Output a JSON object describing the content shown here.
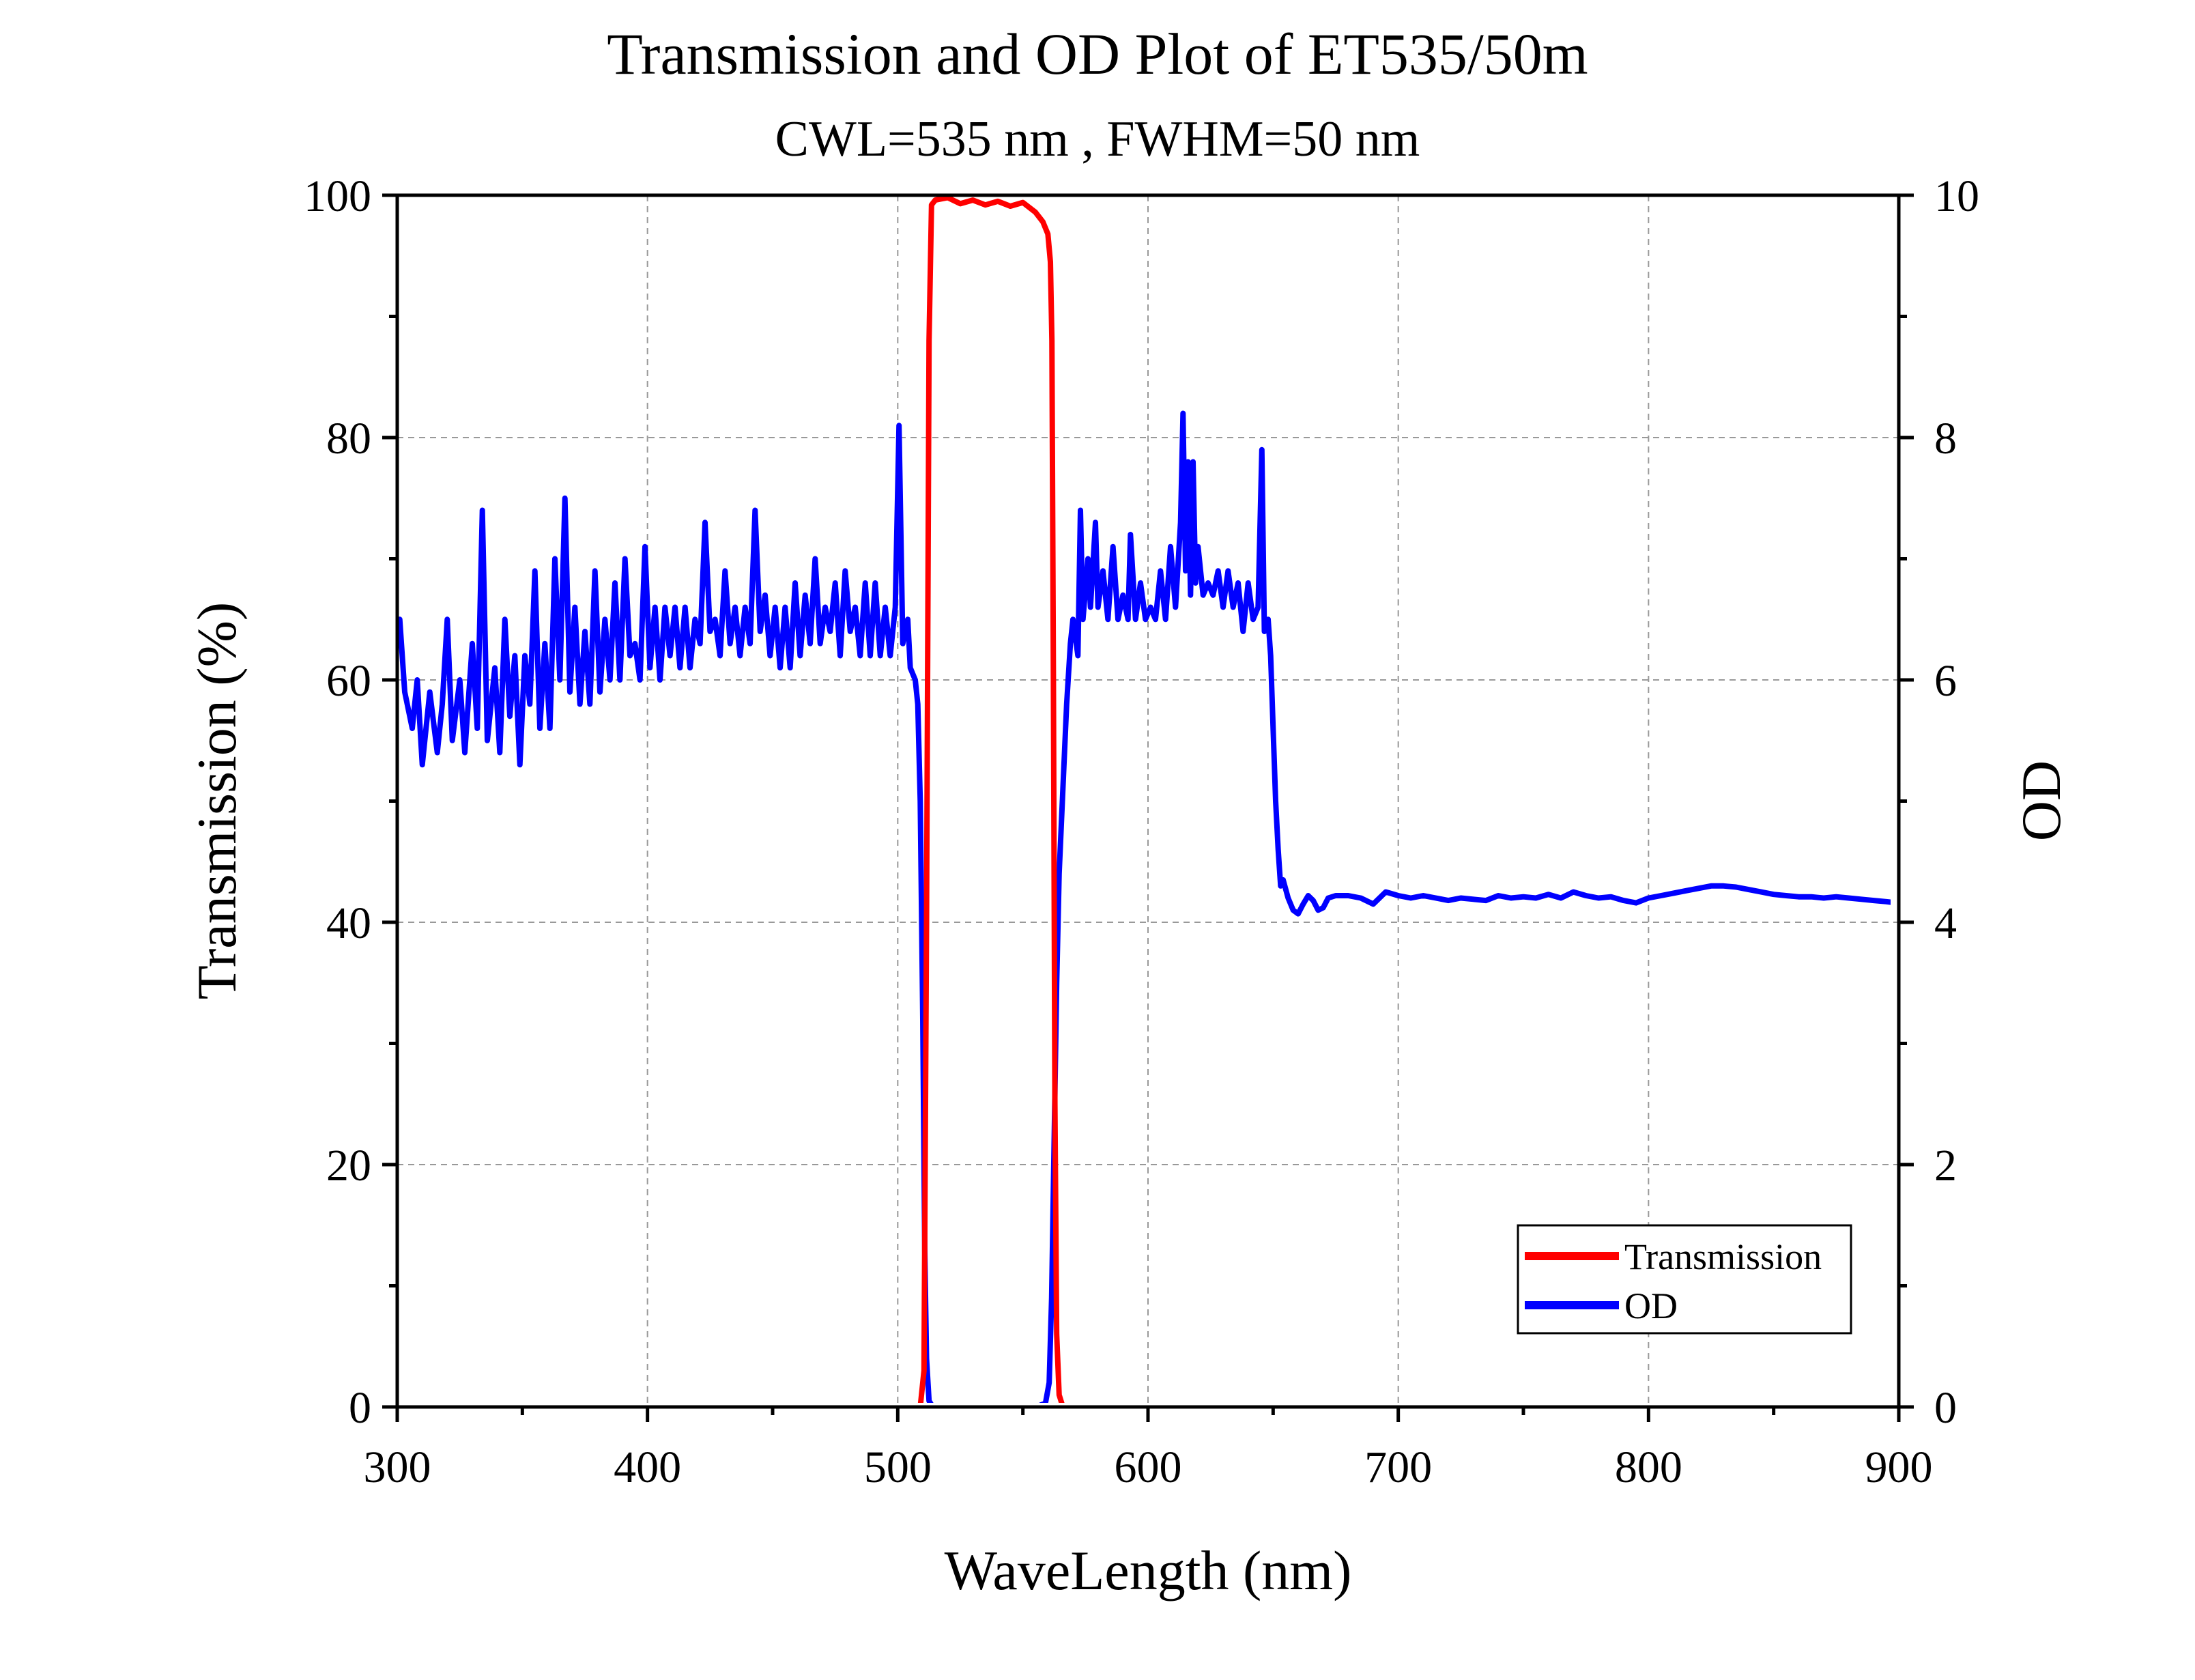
{
  "chart_data": {
    "type": "line",
    "title": "Transmission and OD Plot of ET535/50m",
    "subtitle": "CWL=535 nm , FWHM=50 nm",
    "xlabel": "WaveLength (nm)",
    "ylabel_left": "Transmission (%)",
    "ylabel_right": "OD",
    "xlim": [
      300,
      900
    ],
    "ylim_left": [
      0,
      100
    ],
    "ylim_right": [
      0,
      10
    ],
    "x_ticks": [
      "300",
      "400",
      "500",
      "600",
      "700",
      "800",
      "900"
    ],
    "y_left_ticks": [
      "0",
      "20",
      "40",
      "60",
      "80",
      "100"
    ],
    "y_right_ticks": [
      "0",
      "2",
      "4",
      "6",
      "8",
      "10"
    ],
    "grid": true,
    "legend_position": "bottom-right",
    "series": [
      {
        "name": "Transmission",
        "axis": "left",
        "color": "#ff0000",
        "points": [
          [
            300,
            0
          ],
          [
            509,
            0
          ],
          [
            510.5,
            3
          ],
          [
            511.5,
            40
          ],
          [
            512.5,
            88
          ],
          [
            513.5,
            99.2
          ],
          [
            515,
            99.6
          ],
          [
            520,
            99.8
          ],
          [
            525,
            99.3
          ],
          [
            530,
            99.6
          ],
          [
            535,
            99.2
          ],
          [
            540,
            99.5
          ],
          [
            545,
            99.1
          ],
          [
            550,
            99.4
          ],
          [
            555,
            98.6
          ],
          [
            558,
            97.8
          ],
          [
            560,
            96.8
          ],
          [
            561,
            94.5
          ],
          [
            561.6,
            88
          ],
          [
            562.2,
            60
          ],
          [
            562.8,
            25
          ],
          [
            563.5,
            6
          ],
          [
            564.5,
            1
          ],
          [
            566,
            0
          ],
          [
            900,
            0
          ]
        ]
      },
      {
        "name": "OD",
        "axis": "right",
        "color": "#0000ff",
        "points": [
          [
            301,
            6.5
          ],
          [
            303,
            5.9
          ],
          [
            306,
            5.6
          ],
          [
            308,
            6.0
          ],
          [
            310,
            5.3
          ],
          [
            313,
            5.9
          ],
          [
            316,
            5.4
          ],
          [
            318,
            5.8
          ],
          [
            320,
            6.5
          ],
          [
            322,
            5.5
          ],
          [
            325,
            6.0
          ],
          [
            327,
            5.4
          ],
          [
            330,
            6.3
          ],
          [
            332,
            5.6
          ],
          [
            334,
            7.4
          ],
          [
            336,
            5.5
          ],
          [
            339,
            6.1
          ],
          [
            341,
            5.4
          ],
          [
            343,
            6.5
          ],
          [
            345,
            5.7
          ],
          [
            347,
            6.2
          ],
          [
            349,
            5.3
          ],
          [
            351,
            6.2
          ],
          [
            353,
            5.8
          ],
          [
            355,
            6.9
          ],
          [
            357,
            5.6
          ],
          [
            359,
            6.3
          ],
          [
            361,
            5.6
          ],
          [
            363,
            7.0
          ],
          [
            365,
            6.0
          ],
          [
            367,
            7.5
          ],
          [
            369,
            5.9
          ],
          [
            371,
            6.6
          ],
          [
            373,
            5.8
          ],
          [
            375,
            6.4
          ],
          [
            377,
            5.8
          ],
          [
            379,
            6.9
          ],
          [
            381,
            5.9
          ],
          [
            383,
            6.5
          ],
          [
            385,
            6.0
          ],
          [
            387,
            6.8
          ],
          [
            389,
            6.0
          ],
          [
            391,
            7.0
          ],
          [
            393,
            6.2
          ],
          [
            395,
            6.3
          ],
          [
            397,
            6.0
          ],
          [
            399,
            7.1
          ],
          [
            401,
            6.1
          ],
          [
            403,
            6.6
          ],
          [
            405,
            6.0
          ],
          [
            407,
            6.6
          ],
          [
            409,
            6.2
          ],
          [
            411,
            6.6
          ],
          [
            413,
            6.1
          ],
          [
            415,
            6.6
          ],
          [
            417,
            6.1
          ],
          [
            419,
            6.5
          ],
          [
            421,
            6.3
          ],
          [
            423,
            7.3
          ],
          [
            425,
            6.4
          ],
          [
            427,
            6.5
          ],
          [
            429,
            6.2
          ],
          [
            431,
            6.9
          ],
          [
            433,
            6.3
          ],
          [
            435,
            6.6
          ],
          [
            437,
            6.2
          ],
          [
            439,
            6.6
          ],
          [
            441,
            6.3
          ],
          [
            443,
            7.4
          ],
          [
            445,
            6.4
          ],
          [
            447,
            6.7
          ],
          [
            449,
            6.2
          ],
          [
            451,
            6.6
          ],
          [
            453,
            6.1
          ],
          [
            455,
            6.6
          ],
          [
            457,
            6.1
          ],
          [
            459,
            6.8
          ],
          [
            461,
            6.2
          ],
          [
            463,
            6.7
          ],
          [
            465,
            6.3
          ],
          [
            467,
            7.0
          ],
          [
            469,
            6.3
          ],
          [
            471,
            6.6
          ],
          [
            473,
            6.4
          ],
          [
            475,
            6.8
          ],
          [
            477,
            6.2
          ],
          [
            479,
            6.9
          ],
          [
            481,
            6.4
          ],
          [
            483,
            6.6
          ],
          [
            485,
            6.2
          ],
          [
            487,
            6.8
          ],
          [
            489,
            6.2
          ],
          [
            491,
            6.8
          ],
          [
            493,
            6.2
          ],
          [
            495,
            6.6
          ],
          [
            497,
            6.2
          ],
          [
            499,
            6.6
          ],
          [
            500.5,
            8.1
          ],
          [
            502,
            6.3
          ],
          [
            504,
            6.5
          ],
          [
            505,
            6.1
          ],
          [
            507,
            6.0
          ],
          [
            508,
            5.8
          ],
          [
            509,
            5.0
          ],
          [
            510,
            3.2
          ],
          [
            510.8,
            1.3
          ],
          [
            511.5,
            0.4
          ],
          [
            512.5,
            0.05
          ],
          [
            514,
            0
          ],
          [
            555,
            0
          ],
          [
            559,
            0.03
          ],
          [
            560.5,
            0.2
          ],
          [
            561.5,
            0.9
          ],
          [
            562.5,
            2.2
          ],
          [
            563.5,
            3.5
          ],
          [
            564.5,
            4.4
          ],
          [
            566,
            5.1
          ],
          [
            567.5,
            5.8
          ],
          [
            569,
            6.3
          ],
          [
            570,
            6.5
          ],
          [
            572,
            6.2
          ],
          [
            573,
            7.4
          ],
          [
            574,
            6.5
          ],
          [
            576,
            7.0
          ],
          [
            577,
            6.6
          ],
          [
            579,
            7.3
          ],
          [
            580,
            6.6
          ],
          [
            582,
            6.9
          ],
          [
            584,
            6.5
          ],
          [
            586,
            7.1
          ],
          [
            588,
            6.5
          ],
          [
            590,
            6.7
          ],
          [
            592,
            6.5
          ],
          [
            593,
            7.2
          ],
          [
            595,
            6.5
          ],
          [
            597,
            6.8
          ],
          [
            599,
            6.5
          ],
          [
            601,
            6.6
          ],
          [
            603,
            6.5
          ],
          [
            605,
            6.9
          ],
          [
            607,
            6.5
          ],
          [
            609,
            7.1
          ],
          [
            611,
            6.6
          ],
          [
            613,
            7.3
          ],
          [
            614,
            8.2
          ],
          [
            615,
            6.9
          ],
          [
            616,
            7.8
          ],
          [
            617,
            6.7
          ],
          [
            618,
            7.8
          ],
          [
            619,
            6.8
          ],
          [
            620,
            7.1
          ],
          [
            622,
            6.7
          ],
          [
            624,
            6.8
          ],
          [
            626,
            6.7
          ],
          [
            628,
            6.9
          ],
          [
            630,
            6.6
          ],
          [
            632,
            6.9
          ],
          [
            634,
            6.6
          ],
          [
            636,
            6.8
          ],
          [
            638,
            6.4
          ],
          [
            640,
            6.8
          ],
          [
            642,
            6.5
          ],
          [
            644,
            6.6
          ],
          [
            645.5,
            7.9
          ],
          [
            646.5,
            6.4
          ],
          [
            648,
            6.5
          ],
          [
            649,
            6.2
          ],
          [
            650,
            5.6
          ],
          [
            651,
            5.0
          ],
          [
            652,
            4.6
          ],
          [
            653,
            4.3
          ],
          [
            654,
            4.35
          ],
          [
            656,
            4.2
          ],
          [
            658,
            4.1
          ],
          [
            660,
            4.07
          ],
          [
            662,
            4.15
          ],
          [
            664,
            4.22
          ],
          [
            666,
            4.18
          ],
          [
            668,
            4.1
          ],
          [
            670,
            4.12
          ],
          [
            672,
            4.2
          ],
          [
            675,
            4.22
          ],
          [
            680,
            4.22
          ],
          [
            685,
            4.2
          ],
          [
            690,
            4.15
          ],
          [
            695,
            4.25
          ],
          [
            700,
            4.22
          ],
          [
            705,
            4.2
          ],
          [
            710,
            4.22
          ],
          [
            715,
            4.2
          ],
          [
            720,
            4.18
          ],
          [
            725,
            4.2
          ],
          [
            730,
            4.19
          ],
          [
            735,
            4.18
          ],
          [
            740,
            4.22
          ],
          [
            745,
            4.2
          ],
          [
            750,
            4.21
          ],
          [
            755,
            4.2
          ],
          [
            760,
            4.23
          ],
          [
            765,
            4.2
          ],
          [
            770,
            4.25
          ],
          [
            775,
            4.22
          ],
          [
            780,
            4.2
          ],
          [
            785,
            4.21
          ],
          [
            790,
            4.18
          ],
          [
            795,
            4.16
          ],
          [
            800,
            4.2
          ],
          [
            805,
            4.22
          ],
          [
            810,
            4.24
          ],
          [
            815,
            4.26
          ],
          [
            820,
            4.28
          ],
          [
            825,
            4.3
          ],
          [
            830,
            4.3
          ],
          [
            835,
            4.29
          ],
          [
            840,
            4.27
          ],
          [
            845,
            4.25
          ],
          [
            850,
            4.23
          ],
          [
            855,
            4.22
          ],
          [
            860,
            4.21
          ],
          [
            865,
            4.21
          ],
          [
            870,
            4.2
          ],
          [
            875,
            4.21
          ],
          [
            880,
            4.2
          ],
          [
            885,
            4.19
          ],
          [
            890,
            4.18
          ],
          [
            895,
            4.17
          ],
          [
            899,
            4.16
          ]
        ]
      }
    ]
  }
}
